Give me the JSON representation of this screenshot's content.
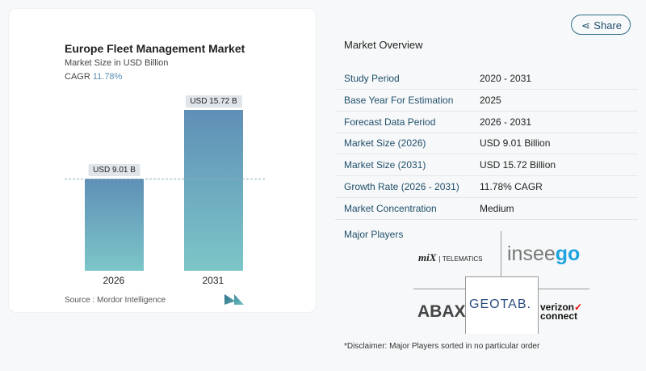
{
  "share_label": "Share",
  "chart": {
    "title": "Europe Fleet Management Market",
    "subtitle": "Market Size in USD Billion",
    "cagr_label": "CAGR",
    "cagr_value": "11.78%",
    "source": "Source :  Mordor Intelligence",
    "accent": "#5b8fb5"
  },
  "chart_data": {
    "type": "bar",
    "categories": [
      "2026",
      "2031"
    ],
    "values": [
      9.01,
      15.72
    ],
    "data_labels": [
      "USD 9.01 B",
      "USD 15.72 B"
    ],
    "title": "Europe Fleet Management Market",
    "ylabel": "Market Size in USD Billion"
  },
  "overview": {
    "title": "Market Overview",
    "rows": [
      {
        "label": "Study Period",
        "value": "2020 - 2031"
      },
      {
        "label": "Base Year For Estimation",
        "value": "2025"
      },
      {
        "label": "Forecast Data Period",
        "value": "2026 - 2031"
      },
      {
        "label": "Market Size (2026)",
        "value": "USD 9.01 Billion"
      },
      {
        "label": "Market Size (2031)",
        "value": "USD 15.72 Billion"
      },
      {
        "label": "Growth Rate (2026 - 2031)",
        "value": "11.78% CAGR"
      },
      {
        "label": "Market Concentration",
        "value": "Medium"
      }
    ]
  },
  "players": {
    "title": "Major Players",
    "logos": [
      "MiX Telematics",
      "inseego",
      "ABAX",
      "GEOTAB",
      "verizon connect"
    ]
  },
  "disclaimer": "*Disclaimer: Major Players sorted in no particular order"
}
